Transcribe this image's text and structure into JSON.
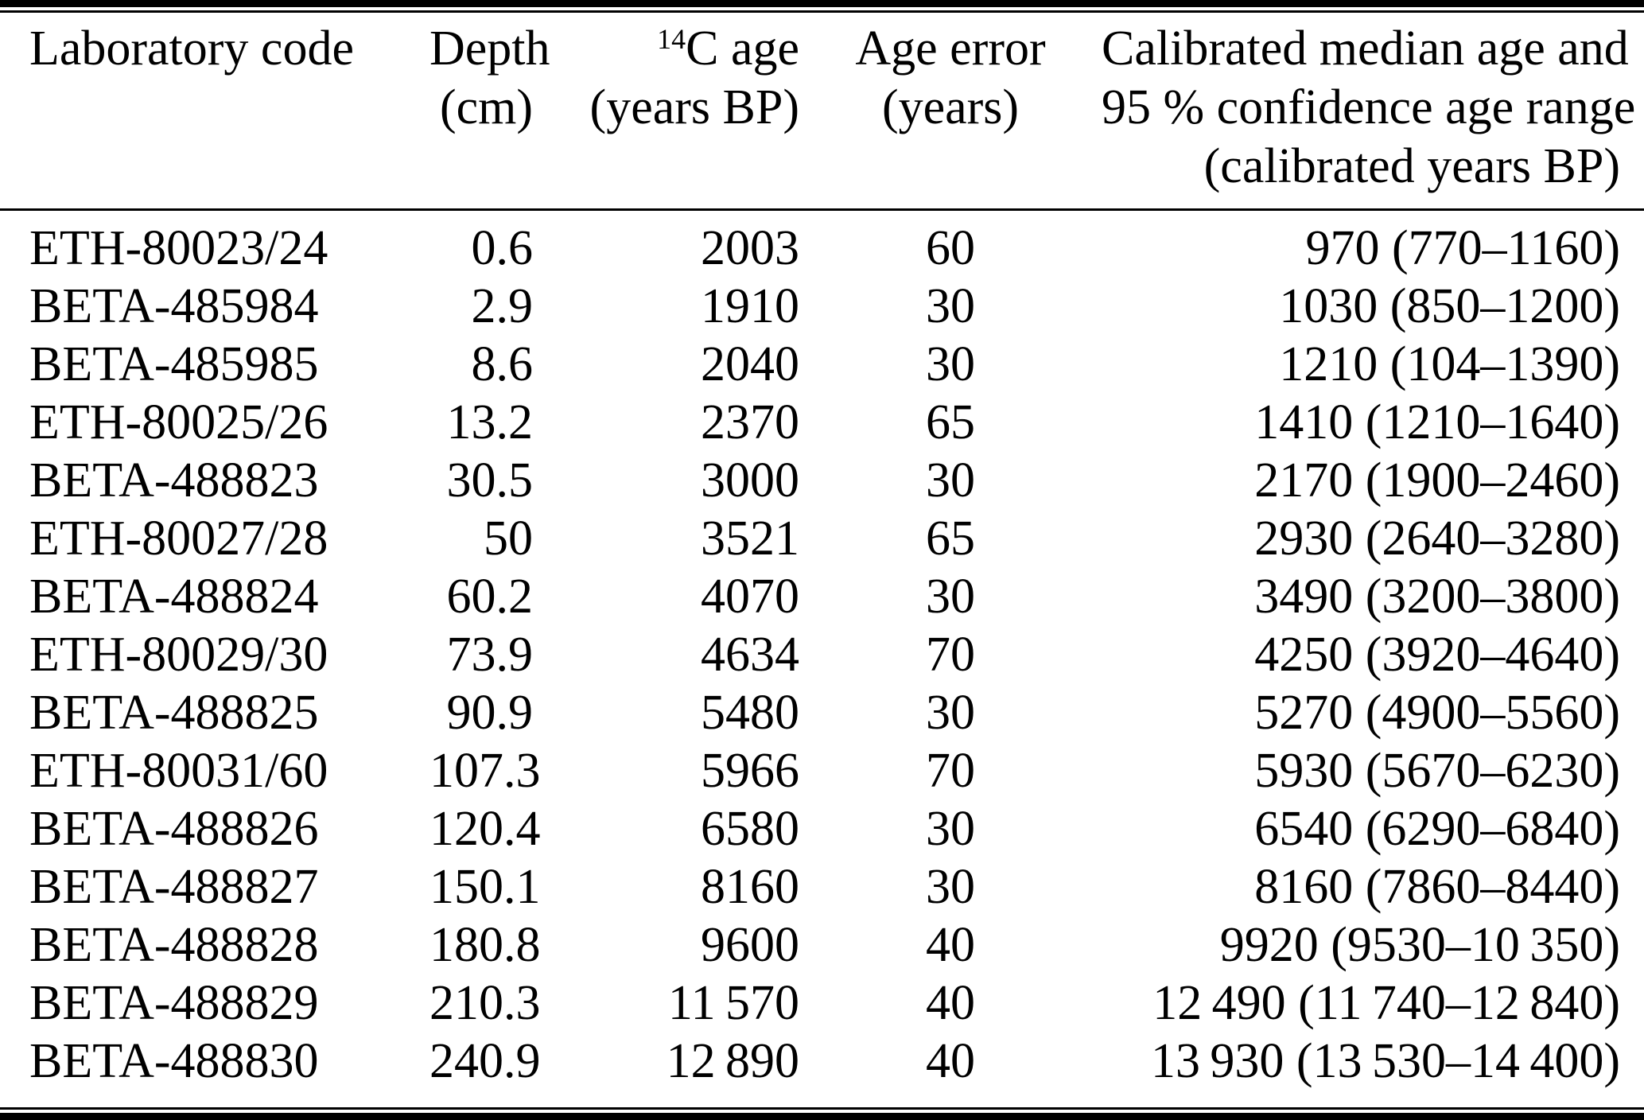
{
  "page": {
    "background_color": "#ffffff",
    "text_color": "#000000",
    "rule_color": "#000000"
  },
  "header": {
    "col1": "Laboratory code",
    "col2_line1": "Depth",
    "col2_line2": "(cm)",
    "col3_sup": "14",
    "col3_rest": "C age",
    "col3_line2": "(years BP)",
    "col4_line1": "Age error",
    "col4_line2": "(years)",
    "col5_line1": "Calibrated median age and",
    "col5_line2": "95 % confidence age range",
    "col5_line3": "(calibrated years BP)"
  },
  "rows": [
    {
      "lab_code": "ETH-80023/24",
      "depth_cm": "0.6",
      "c14_age": "2003",
      "age_error": "60",
      "calibrated": "970 (770–1160)"
    },
    {
      "lab_code": "BETA-485984",
      "depth_cm": "2.9",
      "c14_age": "1910",
      "age_error": "30",
      "calibrated": "1030 (850–1200)"
    },
    {
      "lab_code": "BETA-485985",
      "depth_cm": "8.6",
      "c14_age": "2040",
      "age_error": "30",
      "calibrated": "1210 (104–1390)"
    },
    {
      "lab_code": "ETH-80025/26",
      "depth_cm": "13.2",
      "c14_age": "2370",
      "age_error": "65",
      "calibrated": "1410 (1210–1640)"
    },
    {
      "lab_code": "BETA-488823",
      "depth_cm": "30.5",
      "c14_age": "3000",
      "age_error": "30",
      "calibrated": "2170 (1900–2460)"
    },
    {
      "lab_code": "ETH-80027/28",
      "depth_cm": "50",
      "c14_age": "3521",
      "age_error": "65",
      "calibrated": "2930 (2640–3280)"
    },
    {
      "lab_code": "BETA-488824",
      "depth_cm": "60.2",
      "c14_age": "4070",
      "age_error": "30",
      "calibrated": "3490 (3200–3800)"
    },
    {
      "lab_code": "ETH-80029/30",
      "depth_cm": "73.9",
      "c14_age": "4634",
      "age_error": "70",
      "calibrated": "4250 (3920–4640)"
    },
    {
      "lab_code": "BETA-488825",
      "depth_cm": "90.9",
      "c14_age": "5480",
      "age_error": "30",
      "calibrated": "5270 (4900–5560)"
    },
    {
      "lab_code": "ETH-80031/60",
      "depth_cm": "107.3",
      "c14_age": "5966",
      "age_error": "70",
      "calibrated": "5930 (5670–6230)"
    },
    {
      "lab_code": "BETA-488826",
      "depth_cm": "120.4",
      "c14_age": "6580",
      "age_error": "30",
      "calibrated": "6540 (6290–6840)"
    },
    {
      "lab_code": "BETA-488827",
      "depth_cm": "150.1",
      "c14_age": "8160",
      "age_error": "30",
      "calibrated": "8160 (7860–8440)"
    },
    {
      "lab_code": "BETA-488828",
      "depth_cm": "180.8",
      "c14_age": "9600",
      "age_error": "40",
      "calibrated": "9920 (9530–10 350)"
    },
    {
      "lab_code": "BETA-488829",
      "depth_cm": "210.3",
      "c14_age": "11 570",
      "age_error": "40",
      "calibrated": "12 490 (11 740–12 840)"
    },
    {
      "lab_code": "BETA-488830",
      "depth_cm": "240.9",
      "c14_age": "12 890",
      "age_error": "40",
      "calibrated": "13 930 (13 530–14 400)"
    }
  ]
}
